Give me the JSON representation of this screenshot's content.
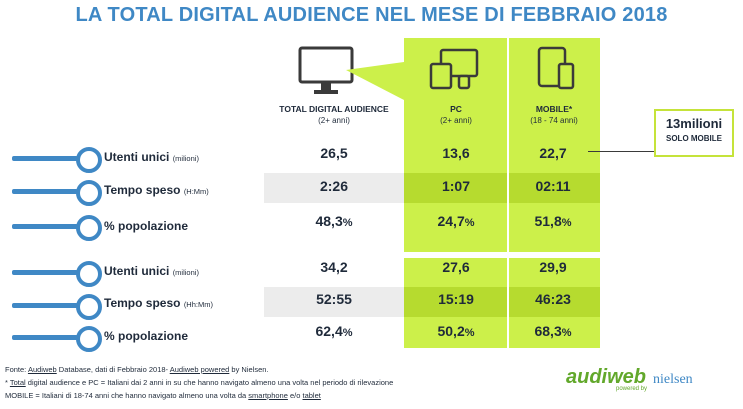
{
  "title": "LA TOTAL DIGITAL AUDIENCE NEL MESE DI FEBBRAIO 2018",
  "columns": [
    {
      "name": "TOTAL DIGITAL AUDIENCE",
      "sub": "(2+ anni)"
    },
    {
      "name": "PC",
      "sub": "(2+ anni)"
    },
    {
      "name": "MOBILE*",
      "sub": "(18 - 74 anni)"
    }
  ],
  "callout": {
    "big": "13milioni",
    "small": "SOLO MOBILE"
  },
  "sections": [
    {
      "rows": [
        {
          "label": "Utenti unici",
          "unit": "(milioni)",
          "values": [
            "26,5",
            "13,6",
            "22,7"
          ],
          "pct": false
        },
        {
          "label": "Tempo speso",
          "unit": "(H:Mm)",
          "values": [
            "2:26",
            "1:07",
            "02:11"
          ],
          "pct": false
        },
        {
          "label": "% popolazione",
          "unit": "",
          "values": [
            "48,3",
            "24,7",
            "51,8"
          ],
          "pct": true
        }
      ]
    },
    {
      "rows": [
        {
          "label": "Utenti unici",
          "unit": "(milioni)",
          "values": [
            "34,2",
            "27,6",
            "29,9"
          ],
          "pct": false
        },
        {
          "label": "Tempo speso",
          "unit": "(Hh:Mm)",
          "values": [
            "52:55",
            "15:19",
            "46:23"
          ],
          "pct": false
        },
        {
          "label": "% popolazione",
          "unit": "",
          "values": [
            "62,4",
            "50,2",
            "68,3"
          ],
          "pct": true
        }
      ]
    }
  ],
  "pct_sign": "%",
  "footnotes": {
    "line1_a": "Fonte: ",
    "line1_b": "Audiweb",
    "line1_c": " Database, dati di Febbraio 2018- ",
    "line1_d": "Audiweb powered",
    "line1_e": " by Nielsen.",
    "line2_a": "* ",
    "line2_b": "Total",
    "line2_c": " digital audience e PC = Italiani dai 2 anni in su che hanno navigato almeno una volta nel periodo di rilevazione",
    "line3_a": "MOBILE = Italiani di 18-74 anni che hanno navigato almeno una volta da ",
    "line3_b": "smartphone",
    "line3_c": " e/o ",
    "line3_d": "tablet"
  },
  "logos": {
    "audiweb": "audiweb",
    "powered": "powered by",
    "nielsen": "nielsen"
  }
}
